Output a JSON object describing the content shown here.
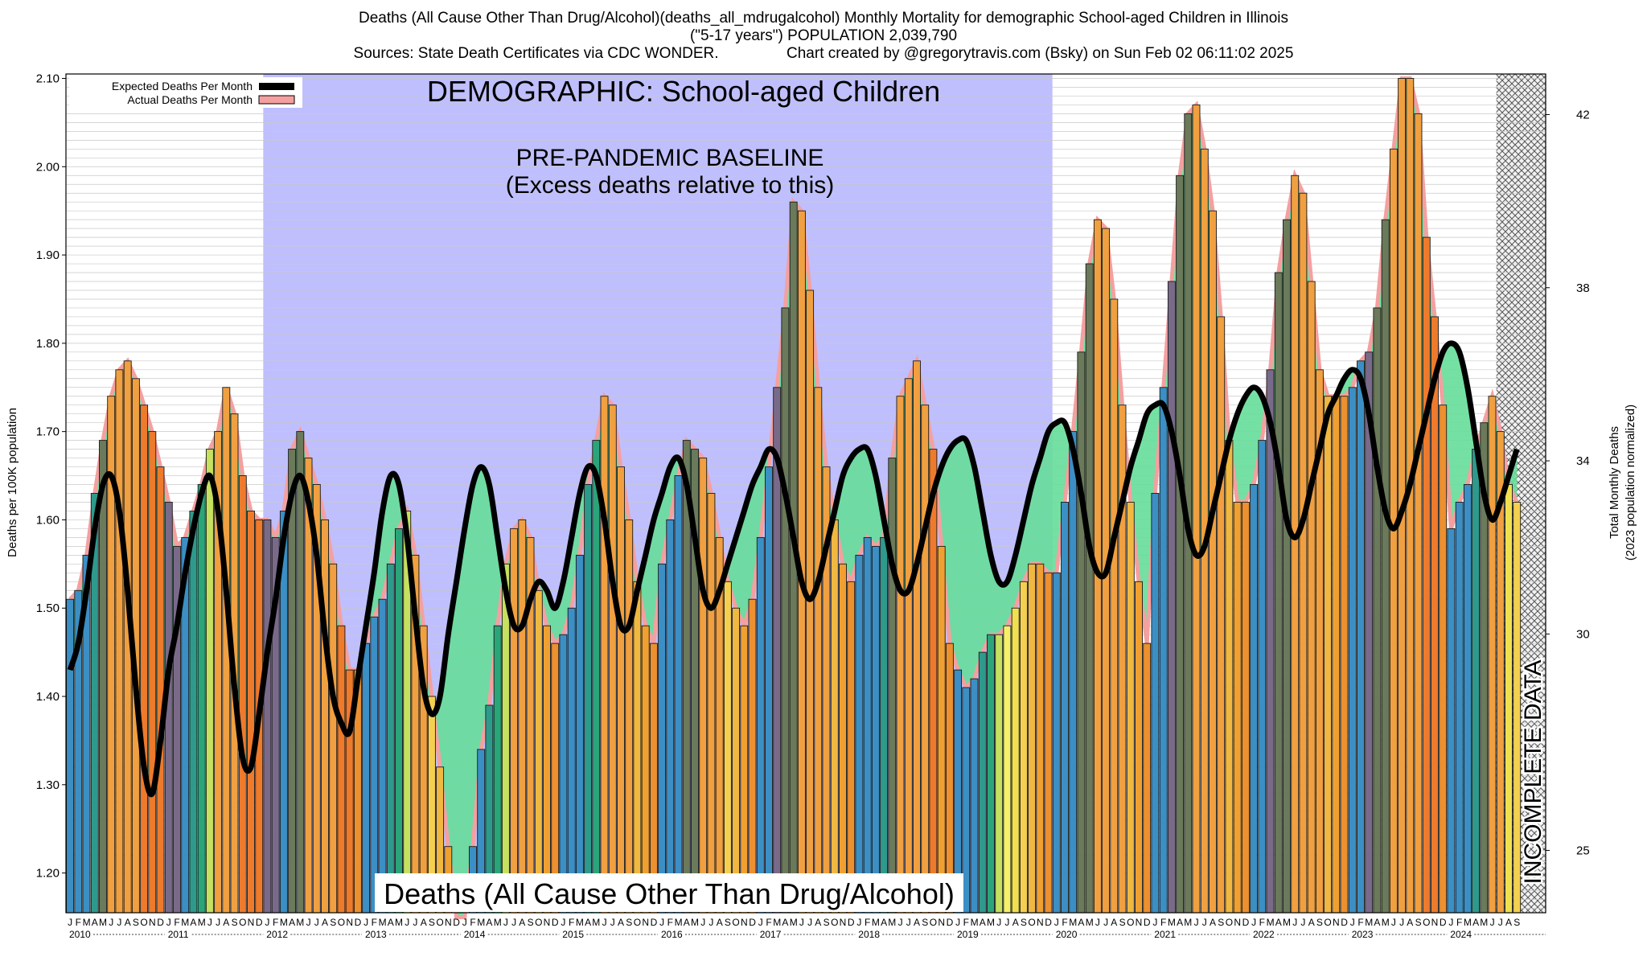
{
  "header": {
    "line1": "Deaths (All Cause Other Than Drug/Alcohol)(deaths_all_mdrugalcohol) Monthly Mortality for demographic School-aged Children in Illinois",
    "line2": "(\"5-17 years\") POPULATION 2,039,790",
    "line3": "Sources: State Death Certificates via CDC WONDER.                Chart created by @gregorytravis.com (Bsky) on Sun Feb 02 06:11:02 2025"
  },
  "annotations": {
    "demographic": "DEMOGRAPHIC: School-aged Children",
    "baseline_line1": "PRE-PANDEMIC BASELINE",
    "baseline_line2": "(Excess deaths relative to this)",
    "bottom_caption": "Deaths (All Cause Other Than Drug/Alcohol)",
    "incomplete": "INCOMPLETE DATA"
  },
  "legend": {
    "expected": "Expected Deaths Per Month",
    "actual": "Actual Deaths Per Month"
  },
  "colors": {
    "baseline_shade": "#bfbfff",
    "expected_line": "#000000",
    "actual_fill": "#f4a0a0",
    "excess_fill": "#66dd99",
    "month_colors": [
      "#3b8fc4",
      "#3b8fc4",
      "#3b8fc4",
      "#2e9a8c",
      "#2aa57a",
      "#c6e060",
      "#f5f06a",
      "#f0e050",
      "#f5d050",
      "#f0b840",
      "#f0a030",
      "#ec9030"
    ]
  },
  "chart_data": {
    "type": "bar",
    "title": "Deaths (All Cause Other Than Drug/Alcohol)(deaths_all_mdrugalcohol) Monthly Mortality for demographic School-aged Children in Illinois",
    "ylabel": "Deaths per 100K population",
    "y2label_line1": "Total Monthly Deaths",
    "y2label_line2": "(2023 population normalized)",
    "ylim": [
      1.155,
      2.105
    ],
    "yticks": [
      "1.20",
      "1.30",
      "1.40",
      "1.50",
      "1.60",
      "1.70",
      "1.80",
      "1.90",
      "2.00",
      "2.10"
    ],
    "y2ticks": [
      "25",
      "30",
      "34",
      "38",
      "42"
    ],
    "y2_values": [
      25,
      30,
      34,
      38,
      42
    ],
    "month_letters": [
      "J",
      "F",
      "M",
      "A",
      "M",
      "J",
      "J",
      "A",
      "S",
      "O",
      "N",
      "D"
    ],
    "years": [
      "2010",
      "2011",
      "2012",
      "2013",
      "2014",
      "2015",
      "2016",
      "2017",
      "2018",
      "2019",
      "2020",
      "2021",
      "2022",
      "2023",
      "2024"
    ],
    "baseline_years": [
      "2012",
      "2013",
      "2014",
      "2015",
      "2016",
      "2017",
      "2018",
      "2019"
    ],
    "incomplete_months": 3,
    "series": [
      {
        "name": "Actual Deaths Per Month",
        "values": [
          1.51,
          1.52,
          1.56,
          1.63,
          1.69,
          1.74,
          1.77,
          1.78,
          1.76,
          1.73,
          1.7,
          1.66,
          1.62,
          1.57,
          1.58,
          1.61,
          1.64,
          1.68,
          1.7,
          1.75,
          1.72,
          1.65,
          1.61,
          1.6,
          1.6,
          1.58,
          1.61,
          1.68,
          1.7,
          1.67,
          1.64,
          1.6,
          1.55,
          1.48,
          1.43,
          1.43,
          1.46,
          1.49,
          1.51,
          1.55,
          1.59,
          1.61,
          1.56,
          1.48,
          1.4,
          1.32,
          1.23,
          1.15,
          1.15,
          1.23,
          1.34,
          1.39,
          1.48,
          1.55,
          1.59,
          1.6,
          1.58,
          1.52,
          1.48,
          1.46,
          1.47,
          1.5,
          1.56,
          1.64,
          1.69,
          1.74,
          1.73,
          1.66,
          1.6,
          1.53,
          1.48,
          1.46,
          1.55,
          1.6,
          1.65,
          1.69,
          1.68,
          1.67,
          1.63,
          1.58,
          1.53,
          1.5,
          1.48,
          1.51,
          1.58,
          1.66,
          1.75,
          1.84,
          1.96,
          1.95,
          1.86,
          1.75,
          1.66,
          1.6,
          1.55,
          1.53,
          1.56,
          1.58,
          1.57,
          1.58,
          1.67,
          1.74,
          1.76,
          1.78,
          1.73,
          1.68,
          1.57,
          1.46,
          1.43,
          1.41,
          1.42,
          1.45,
          1.47,
          1.47,
          1.48,
          1.5,
          1.53,
          1.55,
          1.55,
          1.54,
          1.54,
          1.62,
          1.7,
          1.79,
          1.89,
          1.94,
          1.93,
          1.85,
          1.73,
          1.62,
          1.53,
          1.46,
          1.63,
          1.75,
          1.87,
          1.99,
          2.06,
          2.07,
          2.02,
          1.95,
          1.83,
          1.69,
          1.62,
          1.62,
          1.64,
          1.69,
          1.77,
          1.88,
          1.94,
          1.99,
          1.97,
          1.87,
          1.77,
          1.74,
          1.74,
          1.74,
          1.75,
          1.78,
          1.79,
          1.84,
          1.94,
          2.02,
          2.1,
          2.1,
          2.06,
          1.92,
          1.83,
          1.73,
          1.59,
          1.62,
          1.64,
          1.68,
          1.71,
          1.74,
          1.7,
          1.64,
          1.62
        ]
      },
      {
        "name": "Expected Deaths Per Month",
        "values": [
          1.43,
          1.46,
          1.52,
          1.59,
          1.64,
          1.65,
          1.61,
          1.52,
          1.41,
          1.32,
          1.29,
          1.35,
          1.43,
          1.48,
          1.54,
          1.59,
          1.63,
          1.65,
          1.61,
          1.52,
          1.41,
          1.33,
          1.32,
          1.38,
          1.45,
          1.51,
          1.58,
          1.63,
          1.65,
          1.62,
          1.56,
          1.47,
          1.4,
          1.37,
          1.36,
          1.42,
          1.48,
          1.54,
          1.61,
          1.65,
          1.64,
          1.58,
          1.49,
          1.41,
          1.38,
          1.4,
          1.47,
          1.53,
          1.59,
          1.64,
          1.66,
          1.64,
          1.58,
          1.52,
          1.48,
          1.48,
          1.51,
          1.53,
          1.52,
          1.5,
          1.53,
          1.58,
          1.63,
          1.66,
          1.65,
          1.6,
          1.53,
          1.48,
          1.48,
          1.52,
          1.56,
          1.6,
          1.63,
          1.66,
          1.67,
          1.64,
          1.58,
          1.52,
          1.5,
          1.52,
          1.55,
          1.58,
          1.61,
          1.64,
          1.66,
          1.68,
          1.67,
          1.63,
          1.58,
          1.53,
          1.51,
          1.53,
          1.57,
          1.61,
          1.65,
          1.67,
          1.68,
          1.68,
          1.65,
          1.6,
          1.55,
          1.52,
          1.52,
          1.55,
          1.59,
          1.63,
          1.66,
          1.68,
          1.69,
          1.69,
          1.66,
          1.61,
          1.56,
          1.53,
          1.53,
          1.56,
          1.6,
          1.64,
          1.67,
          1.7,
          1.71,
          1.71,
          1.68,
          1.63,
          1.57,
          1.54,
          1.54,
          1.58,
          1.62,
          1.66,
          1.69,
          1.72,
          1.73,
          1.73,
          1.7,
          1.65,
          1.59,
          1.56,
          1.57,
          1.61,
          1.65,
          1.69,
          1.72,
          1.74,
          1.75,
          1.74,
          1.71,
          1.66,
          1.6,
          1.58,
          1.6,
          1.64,
          1.68,
          1.72,
          1.74,
          1.76,
          1.77,
          1.76,
          1.72,
          1.66,
          1.61,
          1.59,
          1.61,
          1.64,
          1.68,
          1.72,
          1.76,
          1.79,
          1.8,
          1.79,
          1.75,
          1.69,
          1.63,
          1.6,
          1.62,
          1.65,
          1.68
        ]
      }
    ]
  }
}
